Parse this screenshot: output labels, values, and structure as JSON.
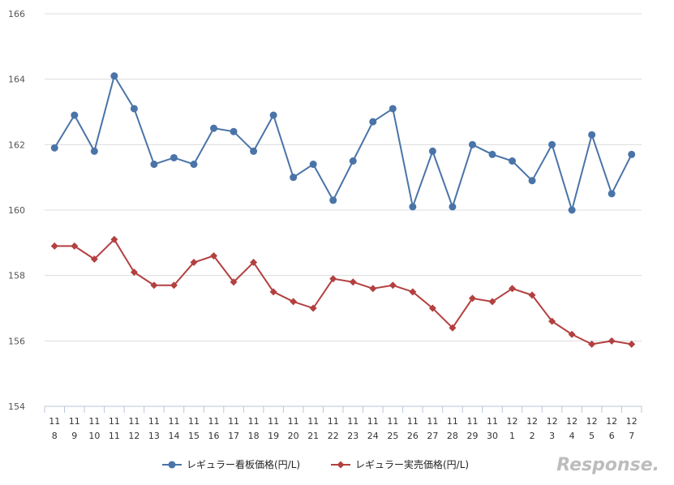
{
  "chart_data": {
    "type": "line",
    "categories": [
      [
        "11",
        "8"
      ],
      [
        "11",
        "9"
      ],
      [
        "11",
        "10"
      ],
      [
        "11",
        "11"
      ],
      [
        "11",
        "12"
      ],
      [
        "11",
        "13"
      ],
      [
        "11",
        "14"
      ],
      [
        "11",
        "15"
      ],
      [
        "11",
        "16"
      ],
      [
        "11",
        "17"
      ],
      [
        "11",
        "18"
      ],
      [
        "11",
        "19"
      ],
      [
        "11",
        "20"
      ],
      [
        "11",
        "21"
      ],
      [
        "11",
        "22"
      ],
      [
        "11",
        "23"
      ],
      [
        "11",
        "24"
      ],
      [
        "11",
        "25"
      ],
      [
        "11",
        "26"
      ],
      [
        "11",
        "27"
      ],
      [
        "11",
        "28"
      ],
      [
        "11",
        "29"
      ],
      [
        "11",
        "30"
      ],
      [
        "12",
        "1"
      ],
      [
        "12",
        "2"
      ],
      [
        "12",
        "3"
      ],
      [
        "12",
        "4"
      ],
      [
        "12",
        "5"
      ],
      [
        "12",
        "6"
      ],
      [
        "12",
        "7"
      ]
    ],
    "ylim": [
      154,
      166
    ],
    "yticks": [
      154,
      156,
      158,
      160,
      162,
      164,
      166
    ],
    "grid": true,
    "legend_position": "bottom",
    "series": [
      {
        "name": "レギュラー看板価格(円/L)",
        "color": "#4a74a8",
        "marker": "circle",
        "values": [
          161.9,
          162.9,
          161.8,
          164.1,
          163.1,
          161.4,
          161.6,
          161.4,
          162.5,
          162.4,
          161.8,
          162.9,
          161.0,
          161.4,
          160.3,
          161.5,
          162.7,
          163.1,
          160.1,
          161.8,
          160.1,
          162.0,
          161.7,
          161.5,
          160.9,
          162.0,
          160.0,
          162.3,
          160.5,
          161.7
        ]
      },
      {
        "name": "レギュラー実売価格(円/L)",
        "color": "#b34040",
        "marker": "diamond",
        "values": [
          158.9,
          158.9,
          158.5,
          159.1,
          158.1,
          157.7,
          157.7,
          158.4,
          158.6,
          157.8,
          158.4,
          157.5,
          157.2,
          157.0,
          157.9,
          157.8,
          157.6,
          157.7,
          157.5,
          157.0,
          156.4,
          157.3,
          157.2,
          157.6,
          157.4,
          156.6,
          156.2,
          155.9,
          156.0,
          155.9
        ]
      }
    ]
  },
  "watermark": "Response."
}
